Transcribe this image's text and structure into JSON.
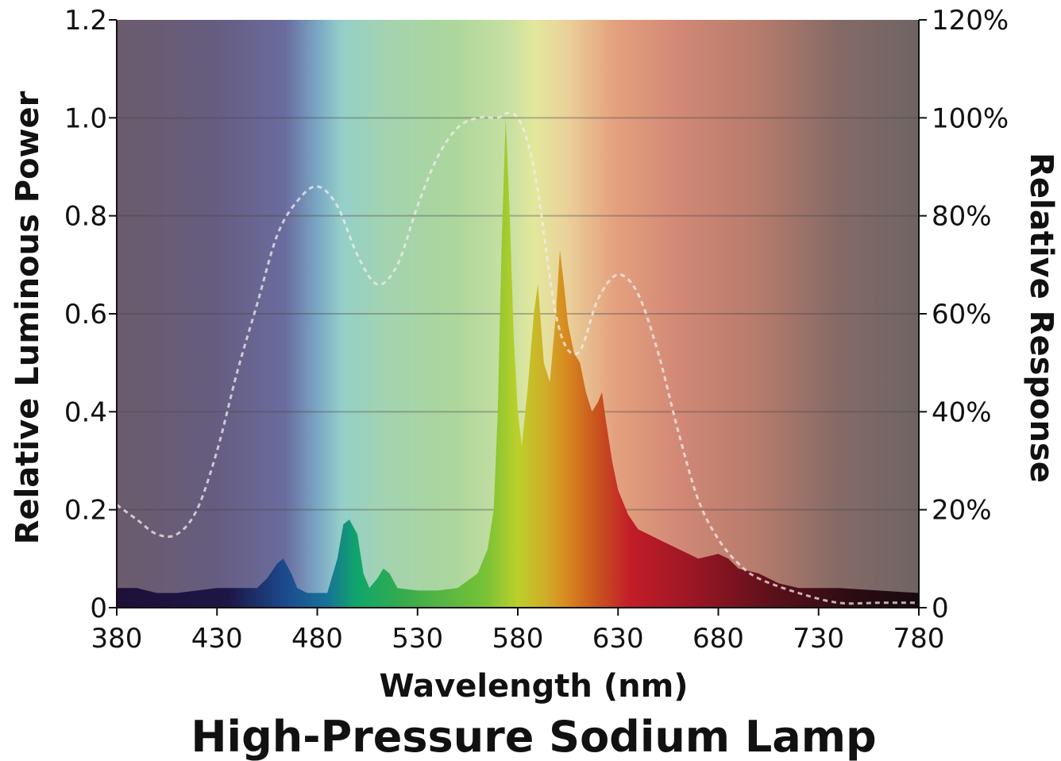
{
  "chart_data": {
    "type": "area",
    "title": "High-Pressure Sodium Lamp",
    "xlabel": "Wavelength (nm)",
    "ylabel": "Relative Luminous Power",
    "y2label": "Relative Response",
    "xlim": [
      380,
      780
    ],
    "ylim": [
      0,
      1.2
    ],
    "y2lim": [
      0,
      120
    ],
    "x_ticks": [
      "380",
      "430",
      "480",
      "530",
      "580",
      "630",
      "680",
      "730",
      "780"
    ],
    "y_ticks": [
      "0",
      "0.2",
      "0.4",
      "0.6",
      "0.8",
      "1.0",
      "1.2"
    ],
    "y2_ticks": [
      "0",
      "20%",
      "40%",
      "60%",
      "80%",
      "100%",
      "120%"
    ],
    "grid": "horizontal",
    "background": "visible spectrum gradient",
    "series": [
      {
        "role": "spectral power (filled)",
        "x": [
          380,
          390,
          400,
          410,
          420,
          430,
          440,
          450,
          455,
          460,
          463,
          467,
          470,
          475,
          480,
          485,
          490,
          493,
          496,
          500,
          503,
          506,
          510,
          513,
          516,
          520,
          530,
          540,
          550,
          560,
          565,
          568,
          570,
          572,
          574,
          576,
          578,
          580,
          582,
          585,
          588,
          590,
          593,
          596,
          599,
          601,
          603,
          605,
          608,
          611,
          614,
          617,
          620,
          622,
          624,
          627,
          630,
          635,
          640,
          650,
          660,
          670,
          680,
          685,
          690,
          700,
          710,
          720,
          740,
          760,
          780
        ],
        "y": [
          0.04,
          0.04,
          0.03,
          0.03,
          0.035,
          0.04,
          0.04,
          0.04,
          0.06,
          0.09,
          0.1,
          0.07,
          0.04,
          0.03,
          0.03,
          0.03,
          0.1,
          0.17,
          0.18,
          0.15,
          0.07,
          0.04,
          0.06,
          0.08,
          0.07,
          0.04,
          0.035,
          0.035,
          0.04,
          0.07,
          0.12,
          0.2,
          0.4,
          0.75,
          1.0,
          0.8,
          0.55,
          0.4,
          0.33,
          0.45,
          0.6,
          0.66,
          0.5,
          0.46,
          0.6,
          0.73,
          0.66,
          0.58,
          0.52,
          0.5,
          0.44,
          0.4,
          0.42,
          0.44,
          0.38,
          0.3,
          0.24,
          0.19,
          0.16,
          0.14,
          0.12,
          0.1,
          0.11,
          0.1,
          0.08,
          0.07,
          0.05,
          0.04,
          0.04,
          0.035,
          0.03
        ]
      },
      {
        "role": "relative response (dashed)",
        "x": [
          380,
          390,
          400,
          410,
          420,
          430,
          440,
          450,
          460,
          470,
          480,
          490,
          500,
          510,
          520,
          530,
          540,
          550,
          560,
          570,
          575,
          580,
          585,
          590,
          600,
          610,
          620,
          630,
          640,
          650,
          660,
          670,
          680,
          690,
          700,
          720,
          740,
          760,
          780
        ],
        "y": [
          21,
          18,
          15,
          15,
          20,
          32,
          48,
          62,
          76,
          83,
          86,
          82,
          72,
          66,
          70,
          82,
          92,
          98,
          100,
          100,
          101,
          100,
          95,
          85,
          58,
          52,
          63,
          68,
          64,
          52,
          36,
          22,
          14,
          9,
          6,
          3,
          1,
          1,
          1
        ]
      }
    ]
  }
}
